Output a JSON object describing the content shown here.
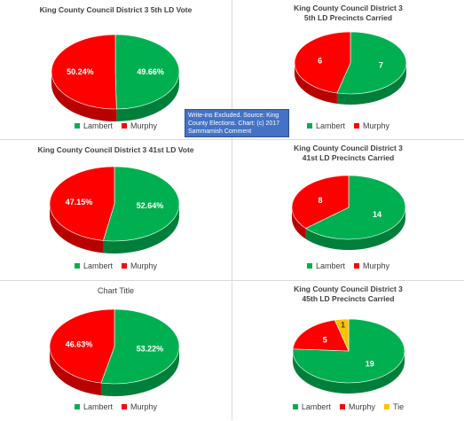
{
  "colors": {
    "lambert": "#00b050",
    "murphy": "#ff0000",
    "tie": "#ffc000"
  },
  "note": "Write-ins Excluded. Source: King County Elections. Chart: (c) 2017 Sammamish Comment",
  "chart_data": [
    {
      "type": "pie",
      "title": "King County Council District 3 5th LD Vote",
      "series": [
        {
          "name": "Lambert",
          "value": 49.66,
          "label": "49.66%"
        },
        {
          "name": "Murphy",
          "value": 50.24,
          "label": "50.24%"
        }
      ],
      "legend": [
        "Lambert",
        "Murphy"
      ],
      "legend_position": "bottom"
    },
    {
      "type": "pie",
      "title": "King County Council District 3 5th LD Precincts Carried",
      "series": [
        {
          "name": "Lambert",
          "value": 7,
          "label": "7"
        },
        {
          "name": "Murphy",
          "value": 6,
          "label": "6"
        }
      ],
      "legend": [
        "Lambert",
        "Murphy"
      ],
      "legend_position": "bottom"
    },
    {
      "type": "pie",
      "title": "King County Council District 3 41st LD Vote",
      "series": [
        {
          "name": "Lambert",
          "value": 52.64,
          "label": "52.64%"
        },
        {
          "name": "Murphy",
          "value": 47.15,
          "label": "47.15%"
        }
      ],
      "legend": [
        "Lambert",
        "Murphy"
      ],
      "legend_position": "bottom"
    },
    {
      "type": "pie",
      "title": "King County Council District 3 41st LD Precincts Carried",
      "series": [
        {
          "name": "Lambert",
          "value": 14,
          "label": "14"
        },
        {
          "name": "Murphy",
          "value": 8,
          "label": "8"
        }
      ],
      "legend": [
        "Lambert",
        "Murphy"
      ],
      "legend_position": "bottom"
    },
    {
      "type": "pie",
      "title": "Chart Title",
      "series": [
        {
          "name": "Lambert",
          "value": 53.22,
          "label": "53.22%"
        },
        {
          "name": "Murphy",
          "value": 46.63,
          "label": "46.63%"
        }
      ],
      "legend": [
        "Lambert",
        "Murphy"
      ],
      "legend_position": "bottom"
    },
    {
      "type": "pie",
      "title": "King County Council District 3 45th LD Precincts Carried",
      "series": [
        {
          "name": "Lambert",
          "value": 19,
          "label": "19"
        },
        {
          "name": "Murphy",
          "value": 5,
          "label": "5"
        },
        {
          "name": "Tie",
          "value": 1,
          "label": "1"
        }
      ],
      "legend": [
        "Lambert",
        "Murphy",
        "Tie"
      ],
      "legend_position": "bottom"
    }
  ]
}
